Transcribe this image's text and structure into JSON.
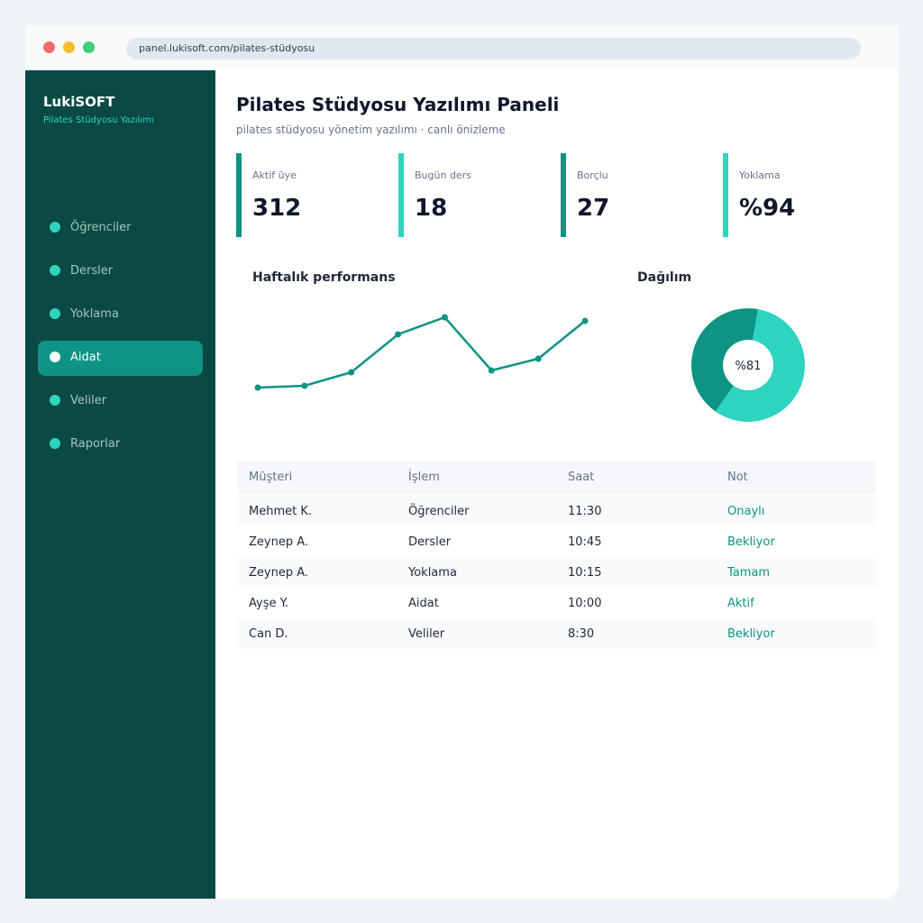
{
  "browser": {
    "url": "panel.lukisoft.com/pilates-stüdyosu"
  },
  "sidebar": {
    "brand": "LukiSOFT",
    "subtitle": "Pilates Stüdyosu Yazılımı",
    "menu": [
      "Öğrenciler",
      "Dersler",
      "Yoklama",
      "Aidat",
      "Veliler",
      "Raporlar"
    ],
    "active": 3
  },
  "header": {
    "title": "Pilates Stüdyosu Yazılımı Paneli",
    "subtitle": "pilates stüdyosu yönetim yazılımı · canlı önizleme"
  },
  "stats": [
    {
      "label": "Aktif üye",
      "value": "312",
      "color": "#0e9384"
    },
    {
      "label": "Bugün ders",
      "value": "18",
      "color": "#2dd4bf"
    },
    {
      "label": "Borçlu",
      "value": "27",
      "color": "#0e9384"
    },
    {
      "label": "Yoklama",
      "value": "%94",
      "color": "#2dd4bf"
    }
  ],
  "chart_data": [
    {
      "type": "line",
      "title": "Haftalık performans",
      "values": [
        10,
        12,
        27,
        69,
        88,
        29,
        42,
        84
      ],
      "ylim": [
        0,
        100
      ],
      "color": "#0e9384"
    },
    {
      "type": "pie",
      "title": "Dağılım",
      "values": [
        57,
        43
      ],
      "colors": [
        "#2dd4bf",
        "#0e9384"
      ],
      "center_label": "%81"
    }
  ],
  "table": {
    "headers": [
      "Müşteri",
      "İşlem",
      "Saat",
      "Not"
    ],
    "rows": [
      [
        "Mehmet K.",
        "Öğrenciler",
        "11:30",
        "Onaylı"
      ],
      [
        "Zeynep A.",
        "Dersler",
        "10:45",
        "Bekliyor"
      ],
      [
        "Zeynep A.",
        "Yoklama",
        "10:15",
        "Tamam"
      ],
      [
        "Ayşe Y.",
        "Aidat",
        "10:00",
        "Aktif"
      ],
      [
        "Can D.",
        "Veliler",
        "8:30",
        "Bekliyor"
      ]
    ]
  }
}
